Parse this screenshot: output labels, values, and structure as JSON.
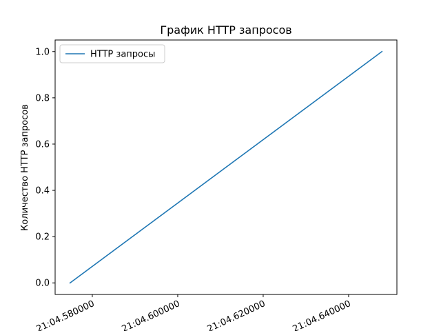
{
  "chart_data": {
    "type": "line",
    "title": "График HTTP запросов",
    "xlabel": "",
    "ylabel": "Количество HTTP запросов",
    "x_ticks": [
      {
        "value": 4.58,
        "label": "21:04.580000"
      },
      {
        "value": 4.6,
        "label": "21:04.600000"
      },
      {
        "value": 4.62,
        "label": "21:04.620000"
      },
      {
        "value": 4.64,
        "label": "21:04.640000"
      }
    ],
    "y_ticks": [
      {
        "value": 0.0,
        "label": "0.0"
      },
      {
        "value": 0.2,
        "label": "0.2"
      },
      {
        "value": 0.4,
        "label": "0.4"
      },
      {
        "value": 0.6,
        "label": "0.6"
      },
      {
        "value": 0.8,
        "label": "0.8"
      },
      {
        "value": 1.0,
        "label": "1.0"
      }
    ],
    "xlim": [
      4.5713,
      4.6513
    ],
    "ylim": [
      -0.05,
      1.05
    ],
    "series": [
      {
        "name": "HTTP запросы",
        "color": "#1f77b4",
        "x": [
          4.5748,
          4.6478
        ],
        "y": [
          0.0,
          1.0
        ]
      }
    ],
    "grid": false,
    "legend_position": "upper-left"
  }
}
